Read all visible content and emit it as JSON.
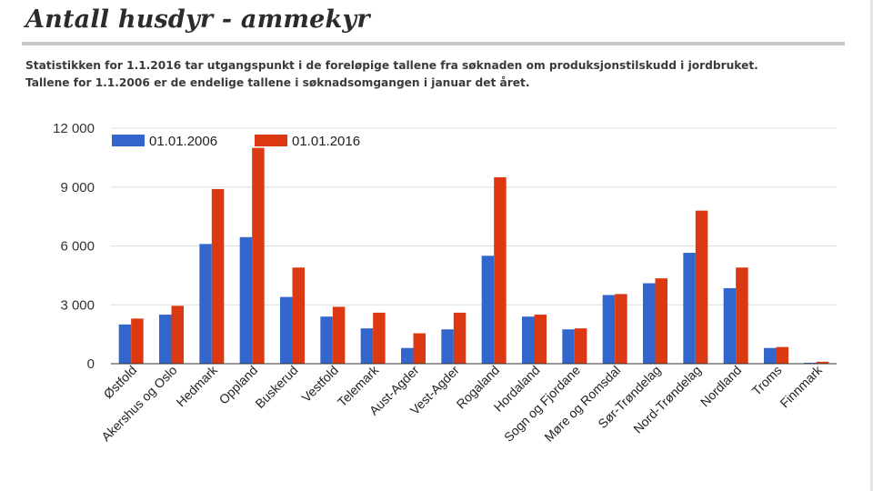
{
  "header": {
    "title": "Antall husdyr - ammekyr",
    "subtitle_line1": "Statistikken for 1.1.2016 tar utgangspunkt i de foreløpige tallene fra søknaden om produksjonstilskudd i jordbruket.",
    "subtitle_line2": "Tallene for 1.1.2006 er de endelige tallene i søknadsomgangen i januar det året."
  },
  "colors": {
    "series_2006": "#3366cc",
    "series_2016": "#dc3912",
    "gridline": "#dddddd",
    "baseline": "#333333"
  },
  "chart_data": {
    "type": "bar",
    "title": "",
    "xlabel": "",
    "ylabel": "",
    "ylim": [
      0,
      12000
    ],
    "yticks": [
      0,
      3000,
      6000,
      9000,
      12000
    ],
    "ytick_labels": [
      "0",
      "3 000",
      "6 000",
      "9 000",
      "12 000"
    ],
    "grid": true,
    "legend_position": "top-left",
    "categories": [
      "Østfold",
      "Akershus og Oslo",
      "Hedmark",
      "Oppland",
      "Buskerud",
      "Vestfold",
      "Telemark",
      "Aust-Agder",
      "Vest-Agder",
      "Rogaland",
      "Hordaland",
      "Sogn og Fjordane",
      "Møre og Romsdal",
      "Sør-Trøndelag",
      "Nord-Trøndelag",
      "Nordland",
      "Troms",
      "Finnmark"
    ],
    "series": [
      {
        "name": "01.01.2006",
        "values": [
          2000,
          2500,
          6100,
          6450,
          3400,
          2400,
          1800,
          800,
          1750,
          5500,
          2400,
          1750,
          3500,
          4100,
          5650,
          3850,
          800,
          50
        ]
      },
      {
        "name": "01.01.2016",
        "values": [
          2300,
          2950,
          8900,
          11000,
          4900,
          2900,
          2600,
          1550,
          2600,
          9500,
          2500,
          1800,
          3550,
          4350,
          7800,
          4900,
          850,
          100
        ]
      }
    ]
  }
}
